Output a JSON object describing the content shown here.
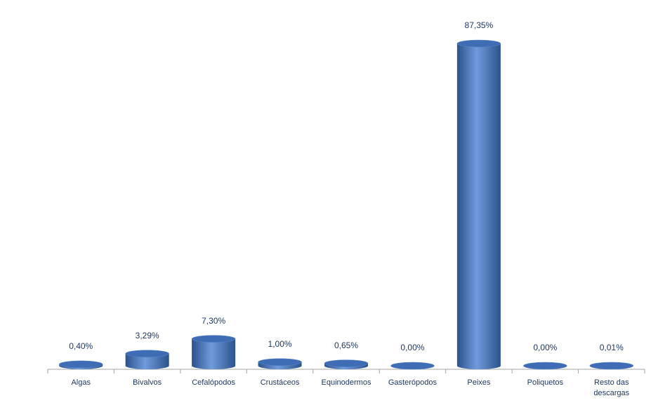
{
  "chart_data": {
    "type": "bar",
    "categories": [
      "Algas",
      "Bivalvos",
      "Cefalópodos",
      "Crustáceos",
      "Equinodermos",
      "Gasterópodos",
      "Peixes",
      "Poliquetos",
      "Resto das descargas"
    ],
    "values": [
      0.4,
      3.29,
      7.3,
      1.0,
      0.65,
      0.0,
      87.35,
      0.0,
      0.01
    ],
    "value_labels": [
      "0,40%",
      "3,29%",
      "7,30%",
      "1,00%",
      "0,65%",
      "0,00%",
      "87,35%",
      "0,00%",
      "0,01%"
    ],
    "color": "#4a7cc4"
  }
}
